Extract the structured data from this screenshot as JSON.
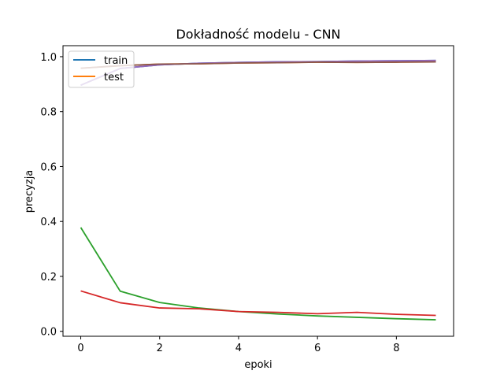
{
  "chart_data": {
    "type": "line",
    "title": "Dokładność modelu - CNN",
    "xlabel": "epoki",
    "ylabel": "precyzja",
    "xlim": [
      -0.45,
      9.45
    ],
    "ylim": [
      -0.018,
      1.04
    ],
    "x_ticks": [
      0,
      2,
      4,
      6,
      8
    ],
    "y_ticks": [
      0.0,
      0.2,
      0.4,
      0.6,
      0.8,
      1.0
    ],
    "y_tick_labels": [
      "0.0",
      "0.2",
      "0.4",
      "0.6",
      "0.8",
      "1.0"
    ],
    "grid": false,
    "legend": {
      "placement": "top-left",
      "entries": [
        {
          "name": "train",
          "color": "#1f77b4"
        },
        {
          "name": "test",
          "color": "#ff7f0e"
        }
      ]
    },
    "x": [
      0,
      1,
      2,
      3,
      4,
      5,
      6,
      7,
      8,
      9
    ],
    "series": [
      {
        "name": "train",
        "color": "#1f77b4",
        "values": [
          0.896,
          0.957,
          0.97,
          0.976,
          0.979,
          0.981,
          0.982,
          0.984,
          0.985,
          0.986
        ]
      },
      {
        "name": "test",
        "color": "#ff7f0e",
        "values": [
          0.958,
          0.967,
          0.973,
          0.974,
          0.977,
          0.978,
          0.98,
          0.979,
          0.98,
          0.981
        ]
      },
      {
        "color": "#2ca02c",
        "values": [
          0.378,
          0.146,
          0.105,
          0.085,
          0.072,
          0.063,
          0.056,
          0.051,
          0.046,
          0.042
        ]
      },
      {
        "color": "#d62728",
        "values": [
          0.147,
          0.104,
          0.085,
          0.082,
          0.072,
          0.069,
          0.064,
          0.069,
          0.062,
          0.058
        ]
      },
      {
        "color": "#9467bd",
        "values": [
          0.896,
          0.957,
          0.97,
          0.976,
          0.979,
          0.981,
          0.982,
          0.984,
          0.985,
          0.986
        ]
      },
      {
        "color": "#8c564b",
        "values": [
          0.958,
          0.967,
          0.973,
          0.974,
          0.977,
          0.978,
          0.98,
          0.979,
          0.98,
          0.981
        ]
      }
    ]
  }
}
